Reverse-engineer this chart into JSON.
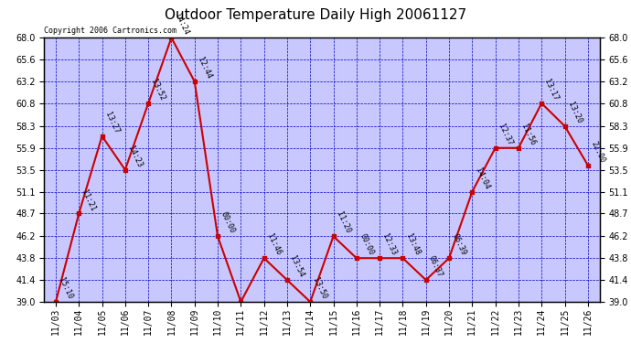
{
  "title": "Outdoor Temperature Daily High 20061127",
  "copyright": "Copyright 2006 Cartronics.com",
  "x_labels": [
    "11/03",
    "11/04",
    "11/05",
    "11/06",
    "11/07",
    "11/08",
    "11/09",
    "11/10",
    "11/11",
    "11/12",
    "11/13",
    "11/14",
    "11/15",
    "11/16",
    "11/17",
    "11/18",
    "11/19",
    "11/20",
    "11/21",
    "11/22",
    "11/23",
    "11/24",
    "11/25",
    "11/26"
  ],
  "y_values": [
    39.0,
    48.7,
    57.2,
    53.5,
    60.8,
    68.0,
    63.2,
    46.2,
    39.0,
    43.8,
    41.4,
    39.0,
    46.2,
    43.8,
    43.8,
    43.8,
    41.4,
    43.8,
    51.1,
    55.9,
    55.9,
    60.8,
    58.3,
    54.0
  ],
  "point_labels": [
    "15:10",
    "11:21",
    "13:27",
    "14:23",
    "13:52",
    "14:24",
    "12:44",
    "00:00",
    "",
    "11:46",
    "13:54",
    "13:50",
    "11:20",
    "00:00",
    "12:33",
    "13:48",
    "06:37",
    "06:39",
    "14:04",
    "12:37",
    "11:56",
    "13:17",
    "13:20",
    "22:00"
  ],
  "ylim": [
    39.0,
    68.0
  ],
  "yticks": [
    39.0,
    41.4,
    43.8,
    46.2,
    48.7,
    51.1,
    53.5,
    55.9,
    58.3,
    60.8,
    63.2,
    65.6,
    68.0
  ],
  "line_color": "#cc0000",
  "marker_color": "#cc0000",
  "bg_color": "#ffffff",
  "plot_bg_color": "#c8c8ff",
  "grid_color": "#0000bb",
  "title_color": "#000000",
  "label_color": "#000000",
  "copyright_color": "#000000",
  "title_fontsize": 11,
  "label_fontsize": 6,
  "tick_fontsize": 7,
  "copyright_fontsize": 6
}
